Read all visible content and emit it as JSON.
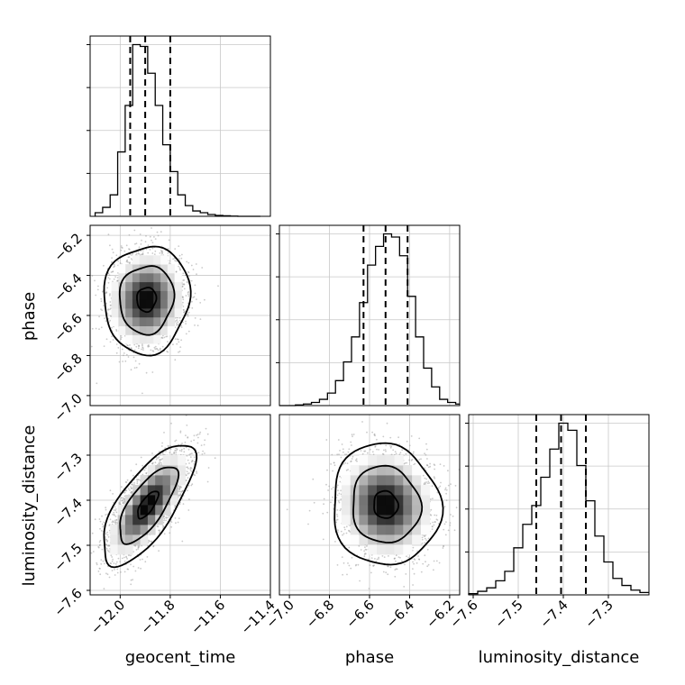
{
  "chart_data": {
    "type": "corner",
    "parameters": [
      "geocent_time",
      "phase",
      "luminosity_distance"
    ],
    "axes": {
      "geocent_time": {
        "range": [
          -12.12,
          -11.4
        ],
        "ticks": [
          "−12.0",
          "−11.8",
          "−11.6",
          "−11.4"
        ],
        "tick_values": [
          -12.0,
          -11.8,
          -11.6,
          -11.4
        ]
      },
      "phase": {
        "range": [
          -7.05,
          -6.15
        ],
        "ticks": [
          "−7.0",
          "−6.8",
          "−6.6",
          "−6.4",
          "−6.2"
        ],
        "tick_values": [
          -7.0,
          -6.8,
          -6.6,
          -6.4,
          -6.2
        ]
      },
      "luminosity_distance": {
        "range": [
          -7.61,
          -7.21
        ],
        "ticks": [
          "−7.6",
          "−7.5",
          "−7.4",
          "−7.3"
        ],
        "tick_values": [
          -7.6,
          -7.5,
          -7.4,
          -7.3
        ]
      }
    },
    "marginals": [
      {
        "parameter": "geocent_time",
        "quantiles": [
          -11.96,
          -11.9,
          -11.8
        ],
        "bin_edges": [
          -12.1,
          -12.07,
          -12.04,
          -12.01,
          -11.98,
          -11.95,
          -11.92,
          -11.89,
          -11.86,
          -11.83,
          -11.8,
          -11.77,
          -11.74,
          -11.71,
          -11.68,
          -11.65,
          -11.62,
          -11.59,
          -11.56,
          -11.53,
          -11.5,
          -11.47,
          -11.44
        ],
        "counts": [
          2,
          5,
          12,
          36,
          62,
          96,
          95,
          80,
          62,
          40,
          25,
          12,
          6,
          3,
          2,
          1,
          0.5,
          0.3,
          0.1,
          0,
          0,
          0
        ]
      },
      {
        "parameter": "phase",
        "quantiles": [
          -6.63,
          -6.52,
          -6.41
        ],
        "bin_edges": [
          -7.05,
          -7.01,
          -6.97,
          -6.93,
          -6.89,
          -6.85,
          -6.81,
          -6.77,
          -6.73,
          -6.69,
          -6.65,
          -6.61,
          -6.57,
          -6.53,
          -6.49,
          -6.45,
          -6.41,
          -6.37,
          -6.33,
          -6.29,
          -6.25,
          -6.21,
          -6.17,
          -6.15
        ],
        "counts": [
          0,
          0,
          0.2,
          0.5,
          1,
          2,
          4,
          8,
          14,
          22,
          33,
          45,
          51,
          55,
          54,
          48,
          35,
          22,
          12,
          6,
          2,
          1,
          0.5
        ]
      },
      {
        "parameter": "luminosity_distance",
        "quantiles": [
          -7.46,
          -7.405,
          -7.35
        ],
        "bin_edges": [
          -7.61,
          -7.59,
          -7.57,
          -7.55,
          -7.53,
          -7.51,
          -7.49,
          -7.47,
          -7.45,
          -7.43,
          -7.41,
          -7.39,
          -7.37,
          -7.35,
          -7.33,
          -7.31,
          -7.29,
          -7.27,
          -7.25,
          -7.23,
          -7.21
        ],
        "counts": [
          0.5,
          1.5,
          3,
          6,
          10,
          20,
          30,
          38,
          50,
          62,
          73,
          70,
          55,
          40,
          25,
          14,
          7,
          4,
          2,
          1
        ]
      }
    ],
    "pairs": [
      {
        "x": "geocent_time",
        "y": "phase",
        "center": [
          -11.895,
          -6.52
        ],
        "sigma": [
          0.07,
          0.11
        ],
        "correlation": 0.05
      },
      {
        "x": "geocent_time",
        "y": "luminosity_distance",
        "center": [
          -11.89,
          -7.41
        ],
        "sigma": [
          0.075,
          0.055
        ],
        "correlation": 0.72
      },
      {
        "x": "phase",
        "y": "luminosity_distance",
        "center": [
          -6.52,
          -7.41
        ],
        "sigma": [
          0.11,
          0.055
        ],
        "correlation": -0.05
      }
    ],
    "contour_levels": [
      "inner",
      "1-sigma",
      "2-sigma"
    ],
    "grid": true,
    "colors": {
      "hist": "#000000",
      "scatter": "#bdbdbd",
      "grid": "#b0b0b0"
    }
  }
}
